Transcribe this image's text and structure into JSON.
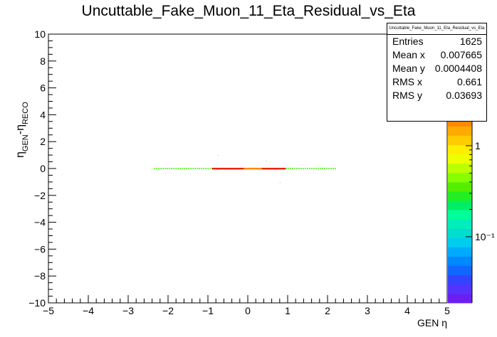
{
  "title": "Uncuttable_Fake_Muon_11_Eta_Residual_vs_Eta",
  "stats": {
    "name": "Uncuttable_Fake_Muon_11_Eta_Residual_vs_Eta",
    "rows": [
      {
        "label": "Entries",
        "value": "1625"
      },
      {
        "label": "Mean x",
        "value": "0.007665"
      },
      {
        "label": "Mean y",
        "value": "0.0004408"
      },
      {
        "label": "RMS x",
        "value": "0.661"
      },
      {
        "label": "RMS y",
        "value": "0.03693"
      }
    ]
  },
  "chart_data": {
    "type": "heatmap",
    "title": "Uncuttable_Fake_Muon_11_Eta_Residual_vs_Eta",
    "xlabel": "GEN η",
    "ylabel": "η_GEN - η_RECO",
    "xlim": [
      -5,
      5
    ],
    "ylim": [
      -10,
      10
    ],
    "x_ticks": [
      -5,
      -4,
      -3,
      -2,
      -1,
      0,
      1,
      2,
      3,
      4,
      5
    ],
    "y_ticks": [
      -10,
      -8,
      -6,
      -4,
      -2,
      0,
      2,
      4,
      6,
      8,
      10
    ],
    "colorbar": {
      "scale": "log",
      "tick_labels": [
        "1",
        "10⁻¹"
      ],
      "tick_values": [
        1,
        0.1
      ]
    },
    "grid": false,
    "segments": [
      {
        "x": [
          -2.35,
          -0.9
        ],
        "y": 0,
        "level": "low",
        "color": "#55ee22"
      },
      {
        "x": [
          -0.9,
          -0.1
        ],
        "y": 0,
        "level": "high",
        "color": "#ee2200"
      },
      {
        "x": [
          -0.1,
          0.35
        ],
        "y": 0,
        "level": "high",
        "color": "#ff8800"
      },
      {
        "x": [
          0.35,
          0.95
        ],
        "y": 0,
        "level": "high",
        "color": "#ee2200"
      },
      {
        "x": [
          0.95,
          2.2
        ],
        "y": 0,
        "level": "low",
        "color": "#55ee22"
      }
    ],
    "outliers": [
      {
        "x": -0.75,
        "y": 1.0
      },
      {
        "x": 0.45,
        "y": 0.6
      },
      {
        "x": 0.8,
        "y": -1.0
      }
    ]
  }
}
